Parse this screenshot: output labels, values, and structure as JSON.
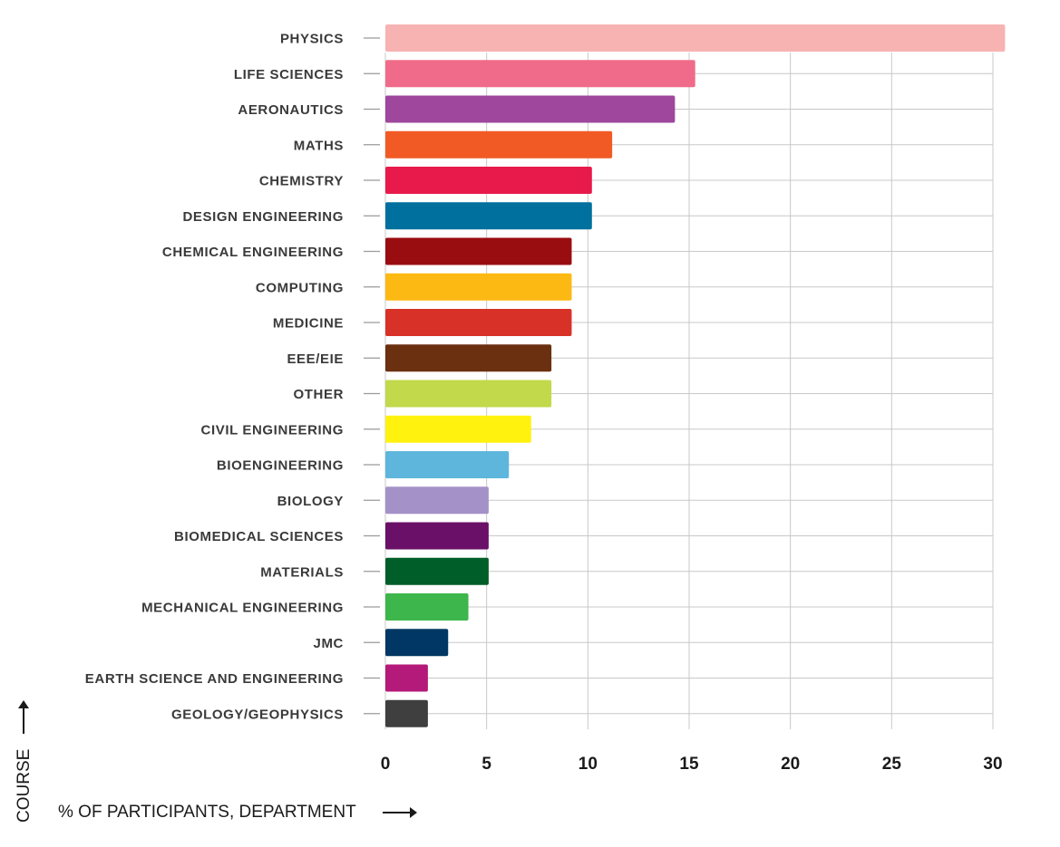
{
  "chart_data": {
    "type": "bar",
    "orientation": "horizontal",
    "categories": [
      "PHYSICS",
      "LIFE SCIENCES",
      "AERONAUTICS",
      "MATHS",
      "CHEMISTRY",
      "DESIGN ENGINEERING",
      "CHEMICAL ENGINEERING",
      "COMPUTING",
      "MEDICINE",
      "EEE/EIE",
      "OTHER",
      "CIVIL ENGINEERING",
      "BIOENGINEERING",
      "BIOLOGY",
      "BIOMEDICAL SCIENCES",
      "MATERIALS",
      "MECHANICAL ENGINEERING",
      "JMC",
      "EARTH SCIENCE AND ENGINEERING",
      "GEOLOGY/GEOPHYSICS"
    ],
    "values": [
      30.6,
      15.3,
      14.3,
      11.2,
      10.2,
      10.2,
      9.2,
      9.2,
      9.2,
      8.2,
      8.2,
      7.2,
      6.1,
      5.1,
      5.1,
      5.1,
      4.1,
      3.1,
      2.1,
      2.1
    ],
    "colors": [
      "#f7b2b2",
      "#f06b89",
      "#9e479c",
      "#f15a24",
      "#e8194b",
      "#00709e",
      "#990d11",
      "#fdb913",
      "#d83228",
      "#6b3010",
      "#c1d94a",
      "#fff20f",
      "#5eb6dc",
      "#a491c8",
      "#6a1068",
      "#005e28",
      "#3db64b",
      "#003764",
      "#b41a79",
      "#3f3f3f"
    ],
    "xlim": [
      0,
      30
    ],
    "xticks": [
      0,
      5,
      10,
      15,
      20,
      25,
      30
    ],
    "xlabel": "% OF PARTICIPANTS, DEPARTMENT",
    "ylabel": "COURSE",
    "title": "",
    "grid": true,
    "legend": "none"
  }
}
